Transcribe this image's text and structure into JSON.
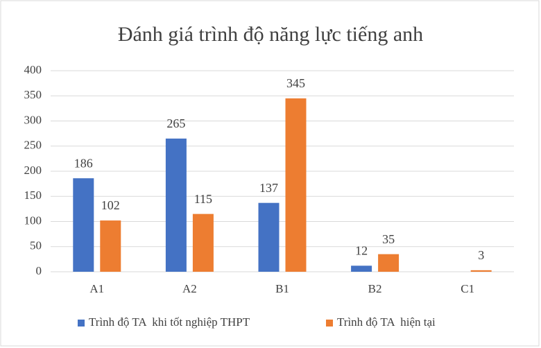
{
  "chart_data": {
    "type": "bar",
    "title": "Đánh giá trình độ năng lực tiếng anh",
    "categories": [
      "A1",
      "A2",
      "B1",
      "B2",
      "C1"
    ],
    "series": [
      {
        "name": "Trình độ TA  khi tốt nghiệp THPT",
        "color": "#4472c4",
        "values": [
          186,
          265,
          137,
          12,
          null
        ]
      },
      {
        "name": "Trình độ TA  hiện tại",
        "color": "#ed7d31",
        "values": [
          102,
          115,
          345,
          35,
          3
        ]
      }
    ],
    "ylim": [
      0,
      400
    ],
    "yticks": [
      0,
      50,
      100,
      150,
      200,
      250,
      300,
      350,
      400
    ],
    "grid": true,
    "legend": "bottom"
  }
}
